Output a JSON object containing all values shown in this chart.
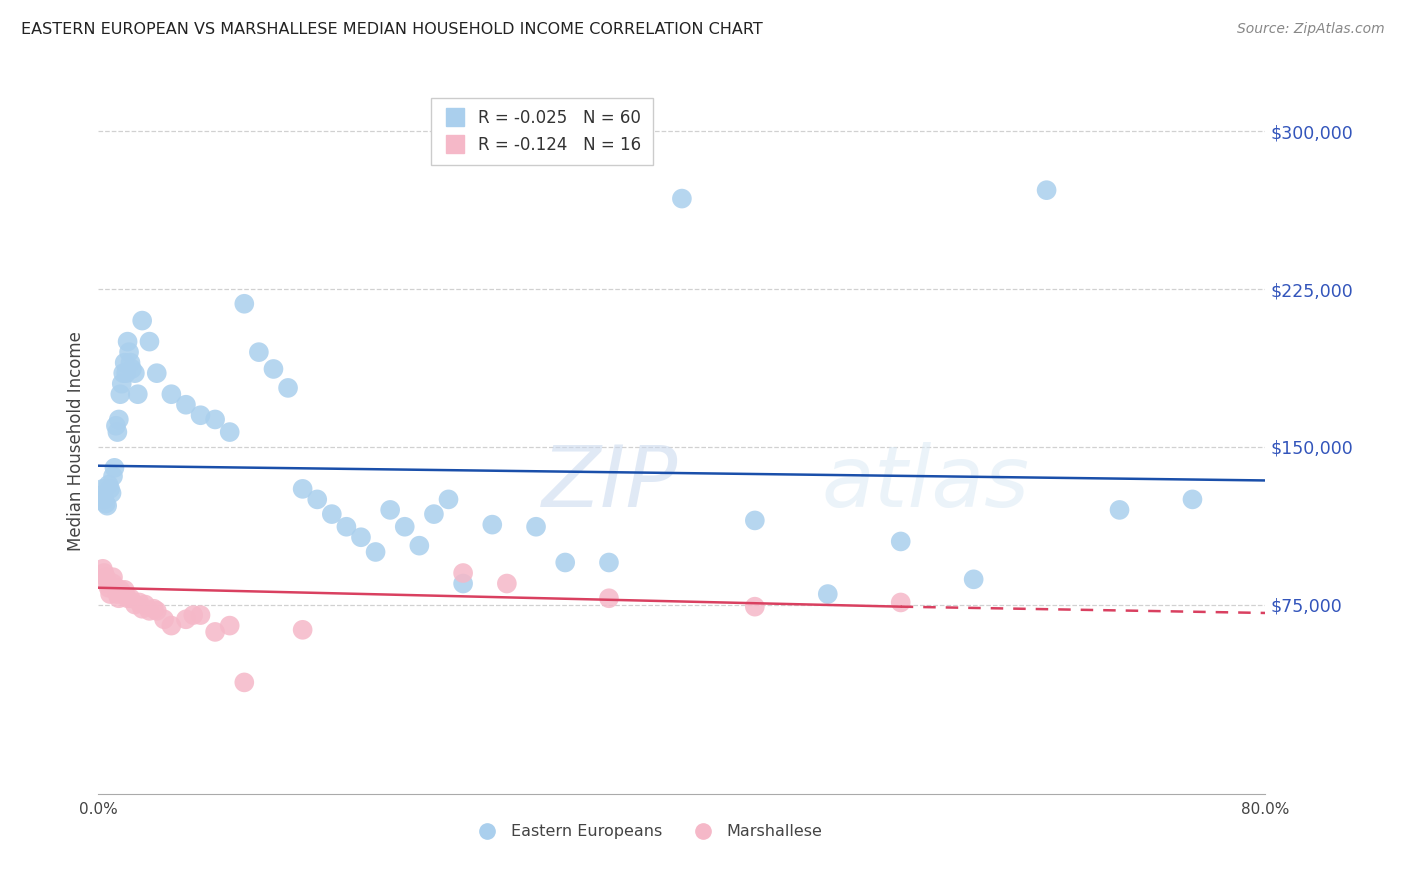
{
  "title": "EASTERN EUROPEAN VS MARSHALLESE MEDIAN HOUSEHOLD INCOME CORRELATION CHART",
  "source": "Source: ZipAtlas.com",
  "ylabel": "Median Household Income",
  "yticks": [
    75000,
    150000,
    225000,
    300000
  ],
  "ytick_labels": [
    "$75,000",
    "$150,000",
    "$225,000",
    "$300,000"
  ],
  "xmin": 0.0,
  "xmax": 80.0,
  "ymin": -15000,
  "ymax": 320000,
  "eastern_european_color": "#aacfed",
  "marshallese_color": "#f5b8c8",
  "trend_blue_color": "#1a4faa",
  "trend_pink_solid_color": "#d94060",
  "trend_pink_dash_color": "#d94060",
  "ytick_color": "#3355bb",
  "watermark_color": "#c5d8ee",
  "ee_x": [
    0.2,
    0.3,
    0.4,
    0.5,
    0.6,
    0.7,
    0.8,
    0.9,
    1.0,
    1.1,
    1.2,
    1.3,
    1.4,
    1.5,
    1.6,
    1.7,
    1.8,
    1.9,
    2.0,
    2.1,
    2.2,
    2.3,
    2.5,
    2.7,
    3.0,
    3.5,
    4.0,
    5.0,
    6.0,
    7.0,
    8.0,
    9.0,
    10.0,
    11.0,
    12.0,
    13.0,
    14.0,
    15.0,
    16.0,
    17.0,
    18.0,
    19.0,
    20.0,
    21.0,
    22.0,
    23.0,
    24.0,
    25.0,
    27.0,
    30.0,
    32.0,
    35.0,
    40.0,
    45.0,
    50.0,
    55.0,
    60.0,
    65.0,
    70.0,
    75.0
  ],
  "ee_y": [
    127000,
    130000,
    125000,
    123000,
    122000,
    132000,
    130000,
    128000,
    136000,
    140000,
    160000,
    157000,
    163000,
    175000,
    180000,
    185000,
    190000,
    185000,
    200000,
    195000,
    190000,
    187000,
    185000,
    175000,
    210000,
    200000,
    185000,
    175000,
    170000,
    165000,
    163000,
    157000,
    218000,
    195000,
    187000,
    178000,
    130000,
    125000,
    118000,
    112000,
    107000,
    100000,
    120000,
    112000,
    103000,
    118000,
    125000,
    85000,
    113000,
    112000,
    95000,
    95000,
    268000,
    115000,
    80000,
    105000,
    87000,
    272000,
    120000,
    125000
  ],
  "marsh_x": [
    0.3,
    0.5,
    0.6,
    0.8,
    1.0,
    1.2,
    1.4,
    1.7,
    2.0,
    2.5,
    3.0,
    3.5,
    4.5,
    5.0,
    6.5,
    8.0,
    25.0,
    35.0,
    55.0,
    10.0,
    1.0,
    1.5,
    2.2,
    3.2,
    4.0,
    7.0,
    9.0,
    14.0,
    28.0,
    45.0,
    0.7,
    1.3,
    2.8,
    0.4,
    1.8,
    3.8,
    6.0
  ],
  "marsh_y": [
    92000,
    88000,
    85000,
    80000,
    88000,
    83000,
    78000,
    80000,
    78000,
    75000,
    73000,
    72000,
    68000,
    65000,
    70000,
    62000,
    90000,
    78000,
    76000,
    38000,
    85000,
    82000,
    78000,
    75000,
    72000,
    70000,
    65000,
    63000,
    85000,
    74000,
    83000,
    80000,
    76000,
    90000,
    82000,
    73000,
    68000
  ],
  "ee_trend_x0": 0,
  "ee_trend_y0": 141000,
  "ee_trend_x1": 80,
  "ee_trend_y1": 134000,
  "pink_solid_x0": 0,
  "pink_solid_y0": 83000,
  "pink_solid_x1": 55,
  "pink_solid_y1": 74000,
  "pink_dash_x0": 55,
  "pink_dash_y0": 74000,
  "pink_dash_x1": 80,
  "pink_dash_y1": 71000
}
